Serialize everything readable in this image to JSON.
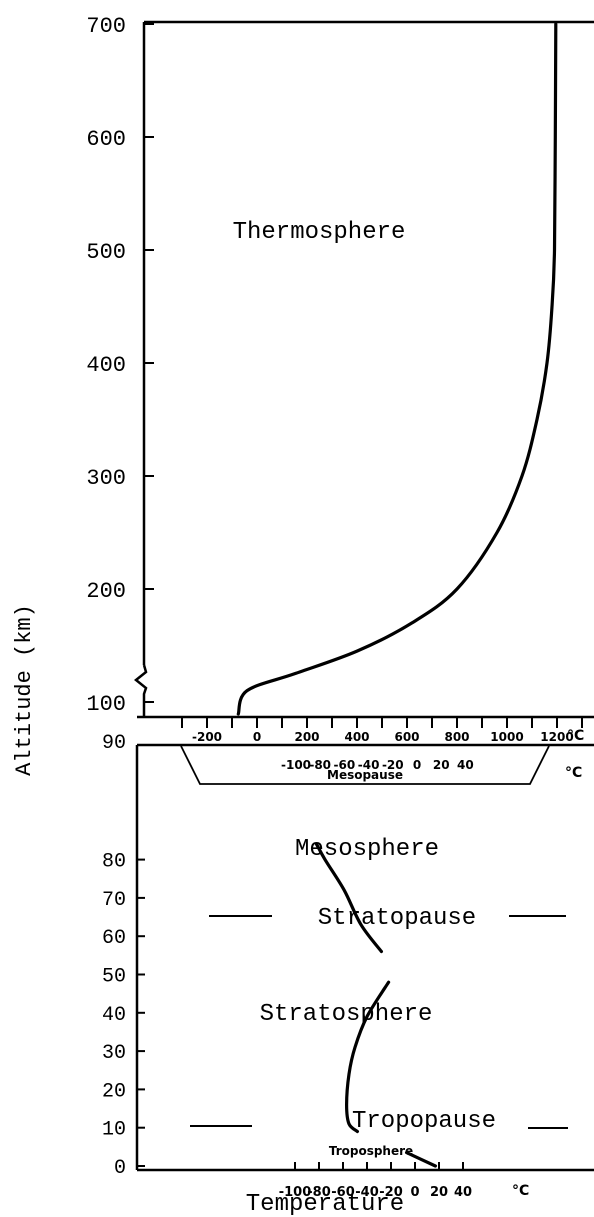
{
  "chart_data": [
    {
      "type": "line",
      "title": "",
      "panel": "upper",
      "xlabel": "",
      "ylabel": "Altitude (km)",
      "ylim": [
        95,
        700
      ],
      "y_ticks": [
        "100",
        "200",
        "300",
        "400",
        "500",
        "600",
        "700"
      ],
      "x_ticks": [
        "-200",
        "0",
        "200",
        "400",
        "600",
        "800",
        "1000",
        "1200"
      ],
      "x_unit": "°C",
      "xlim": [
        -300,
        1300
      ],
      "series": [
        {
          "points": [
            {
              "x": -75,
              "y": 95
            },
            {
              "x": -40,
              "y": 110
            },
            {
              "x": 150,
              "y": 125
            },
            {
              "x": 400,
              "y": 145
            },
            {
              "x": 620,
              "y": 170
            },
            {
              "x": 800,
              "y": 200
            },
            {
              "x": 960,
              "y": 250
            },
            {
              "x": 1060,
              "y": 300
            },
            {
              "x": 1120,
              "y": 350
            },
            {
              "x": 1160,
              "y": 400
            },
            {
              "x": 1180,
              "y": 450
            },
            {
              "x": 1190,
              "y": 500
            },
            {
              "x": 1193,
              "y": 600
            },
            {
              "x": 1195,
              "y": 700
            }
          ]
        }
      ],
      "annotations": [
        "Thermosphere"
      ]
    },
    {
      "type": "line",
      "title": "",
      "panel": "lower",
      "xlabel": "Temperature",
      "ylabel": "Altitude (km)",
      "ylim": [
        0,
        95
      ],
      "y_ticks": [
        "0",
        "10",
        "20",
        "30",
        "40",
        "50",
        "60",
        "70",
        "80",
        "90"
      ],
      "x_ticks": [
        "-100",
        "-80",
        "-60",
        "-40",
        "-20",
        "0",
        "20",
        "40"
      ],
      "x_unit": "°C",
      "xlim": [
        -120,
        80
      ],
      "mesopause_scale_ticks": [
        "-100",
        "-80",
        "-60",
        "-40",
        "-20",
        "0",
        "20",
        "40"
      ],
      "mesopause_scale_unit": "°C",
      "series": [
        {
          "points": [
            {
              "x": -82,
              "y": 84
            },
            {
              "x": -75,
              "y": 80
            },
            {
              "x": -59,
              "y": 72
            },
            {
              "x": -45,
              "y": 63
            },
            {
              "x": -28,
              "y": 56
            }
          ]
        },
        {
          "points": [
            {
              "x": -22,
              "y": 48
            },
            {
              "x": -40,
              "y": 39
            },
            {
              "x": -50,
              "y": 31
            },
            {
              "x": -55,
              "y": 24
            },
            {
              "x": -57,
              "y": 16
            },
            {
              "x": -55,
              "y": 11
            },
            {
              "x": -48,
              "y": 9
            }
          ]
        },
        {
          "points": [
            {
              "x": -7,
              "y": 3.5
            },
            {
              "x": 17,
              "y": 0
            }
          ]
        }
      ],
      "annotations": [
        "Mesopause",
        "Mesosphere",
        "Stratopause",
        "Stratosphere",
        "Tropopause",
        "Troposphere"
      ]
    }
  ]
}
